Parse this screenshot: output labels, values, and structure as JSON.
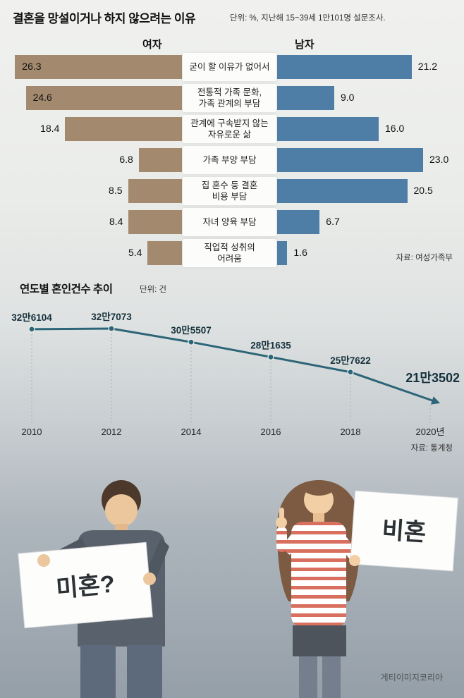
{
  "colors": {
    "female_bar": "#a38a6e",
    "male_bar": "#4e7da6",
    "line": "#2c6577",
    "value_text": "#15313c",
    "sign_text": "#2c3135"
  },
  "signs": {
    "man": "미혼?",
    "woman": "비혼"
  },
  "credit": "게티이미지코리아",
  "chart_data": [
    {
      "type": "bar",
      "orientation": "diverging-horizontal",
      "title": "결혼을 망설이거나 하지 않으려는 이유",
      "subtitle": "단위: %, 지난해 15~39세 1만101명 설문조사.",
      "unit": "%",
      "categories": [
        "굳이 할 이유가 없어서",
        "전통적 가족 문화,\n가족 관계의 부담",
        "관계에 구속받지 않는\n자유로운 삶",
        "가족 부양 부담",
        "집 혼수 등 결혼\n비용 부담",
        "자녀 양육 부담",
        "직업적 성취의\n어려움"
      ],
      "series": [
        {
          "name": "여자",
          "values": [
            26.3,
            24.6,
            18.4,
            6.8,
            8.5,
            8.4,
            5.4
          ]
        },
        {
          "name": "남자",
          "values": [
            21.2,
            9.0,
            16.0,
            23.0,
            20.5,
            6.7,
            1.6
          ]
        }
      ],
      "xlim": [
        0,
        27
      ],
      "source": "자료: 여성가족부"
    },
    {
      "type": "line",
      "title": "연도별 혼인건수 추이",
      "unit": "건",
      "unit_label": "단위: 건",
      "x": [
        2010,
        2012,
        2014,
        2016,
        2018,
        2020
      ],
      "x_labels": [
        "2010",
        "2012",
        "2014",
        "2016",
        "2018",
        "2020년"
      ],
      "values": [
        326104,
        327073,
        305507,
        281635,
        257622,
        213502
      ],
      "value_labels": [
        "32만6104",
        "32만7073",
        "30만5507",
        "28만1635",
        "25만7622",
        "21만3502"
      ],
      "ylim": [
        213502,
        327073
      ],
      "grid": false,
      "legend": "none",
      "source": "자료: 통계청"
    }
  ]
}
